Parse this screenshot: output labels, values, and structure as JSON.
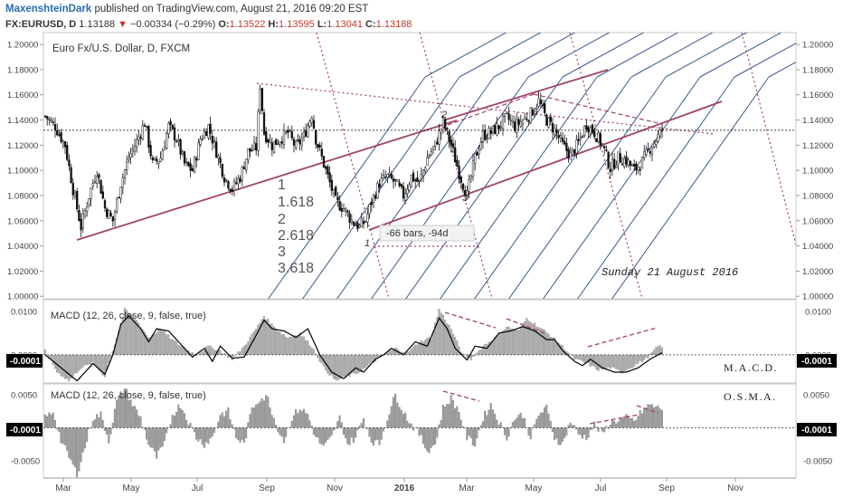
{
  "header": {
    "author": "MaxenshteinDark",
    "published": "published on TradingView.com, August 21, 2016 09:20 EST",
    "symbol": "FX:EURUSD, D",
    "last": "1.13188",
    "change_arrow": "▼",
    "change": "−0.00334 (−0.29%)",
    "o_label": "O:",
    "o_value": "1.13522",
    "h_label": "H:",
    "h_value": "1.13595",
    "l_label": "L:",
    "l_value": "1.13041",
    "c_label": "C:",
    "c_value": "1.13188"
  },
  "chart_data": [
    {
      "type": "candlestick",
      "title": "Euro Fx/U.S. Dollar, D, FXCM",
      "ylim": [
        0.998,
        1.208
      ],
      "y_ticks": [
        "1.20000",
        "1.18000",
        "1.16000",
        "1.14000",
        "1.12000",
        "1.10000",
        "1.08000",
        "1.06000",
        "1.04000",
        "1.02000",
        "1.00000"
      ],
      "x_ticks": [
        "Mar",
        "May",
        "Jul",
        "Sep",
        "Nov",
        "2016",
        "Mar",
        "May",
        "Jul",
        "Sep",
        "Nov"
      ],
      "price_reference": 1.13188,
      "close_path": [
        [
          0,
          1.143
        ],
        [
          5,
          1.135
        ],
        [
          10,
          1.12
        ],
        [
          14,
          1.085
        ],
        [
          18,
          1.055
        ],
        [
          22,
          1.08
        ],
        [
          26,
          1.1
        ],
        [
          30,
          1.07
        ],
        [
          34,
          1.06
        ],
        [
          38,
          1.09
        ],
        [
          42,
          1.11
        ],
        [
          46,
          1.123
        ],
        [
          50,
          1.138
        ],
        [
          54,
          1.105
        ],
        [
          58,
          1.11
        ],
        [
          62,
          1.135
        ],
        [
          66,
          1.125
        ],
        [
          70,
          1.105
        ],
        [
          74,
          1.1
        ],
        [
          78,
          1.125
        ],
        [
          82,
          1.135
        ],
        [
          86,
          1.115
        ],
        [
          90,
          1.095
        ],
        [
          94,
          1.085
        ],
        [
          98,
          1.095
        ],
        [
          102,
          1.115
        ],
        [
          106,
          1.118
        ],
        [
          108,
          1.168
        ],
        [
          110,
          1.13
        ],
        [
          114,
          1.12
        ],
        [
          118,
          1.125
        ],
        [
          122,
          1.13
        ],
        [
          126,
          1.118
        ],
        [
          130,
          1.127
        ],
        [
          134,
          1.145
        ],
        [
          136,
          1.125
        ],
        [
          138,
          1.115
        ],
        [
          142,
          1.095
        ],
        [
          146,
          1.075
        ],
        [
          150,
          1.07
        ],
        [
          154,
          1.06
        ],
        [
          158,
          1.055
        ],
        [
          161,
          1.06
        ],
        [
          164,
          1.075
        ],
        [
          168,
          1.09
        ],
        [
          172,
          1.095
        ],
        [
          176,
          1.09
        ],
        [
          180,
          1.08
        ],
        [
          184,
          1.095
        ],
        [
          188,
          1.09
        ],
        [
          192,
          1.11
        ],
        [
          196,
          1.12
        ],
        [
          200,
          1.138
        ],
        [
          204,
          1.12
        ],
        [
          208,
          1.098
        ],
        [
          212,
          1.08
        ],
        [
          216,
          1.11
        ],
        [
          220,
          1.128
        ],
        [
          224,
          1.13
        ],
        [
          228,
          1.135
        ],
        [
          232,
          1.142
        ],
        [
          236,
          1.135
        ],
        [
          240,
          1.14
        ],
        [
          244,
          1.145
        ],
        [
          248,
          1.155
        ],
        [
          252,
          1.14
        ],
        [
          256,
          1.132
        ],
        [
          260,
          1.12
        ],
        [
          264,
          1.112
        ],
        [
          268,
          1.122
        ],
        [
          272,
          1.137
        ],
        [
          276,
          1.13
        ],
        [
          280,
          1.12
        ],
        [
          284,
          1.102
        ],
        [
          288,
          1.11
        ],
        [
          292,
          1.108
        ],
        [
          296,
          1.1
        ],
        [
          300,
          1.107
        ],
        [
          304,
          1.118
        ],
        [
          308,
          1.127
        ],
        [
          310,
          1.132
        ]
      ],
      "annotations": {
        "fib_levels": [
          "1",
          "1.618",
          "2",
          "2.618",
          "3",
          "3.618"
        ],
        "pivot_labels": [
          "1",
          "2",
          "3"
        ],
        "measure_label": "-66 bars, -94d",
        "date_label": "Sunday 21 August 2016"
      }
    },
    {
      "type": "line",
      "title": "MACD (12, 26, close, 9, false, true)",
      "ylim": [
        -0.0065,
        0.0125
      ],
      "y_ticks": [
        "0.0100",
        "0.0000"
      ],
      "current_value": "-0.0001",
      "panel_label": "M.A.C.D.",
      "macd_line": [
        [
          0,
          0.0
        ],
        [
          8,
          -0.003
        ],
        [
          16,
          -0.006
        ],
        [
          24,
          -0.002
        ],
        [
          30,
          -0.0045
        ],
        [
          34,
          0.0
        ],
        [
          38,
          0.007
        ],
        [
          42,
          0.009
        ],
        [
          48,
          0.006
        ],
        [
          52,
          0.003
        ],
        [
          56,
          0.006
        ],
        [
          62,
          0.0055
        ],
        [
          68,
          0.0025
        ],
        [
          74,
          -0.0005
        ],
        [
          80,
          0.0015
        ],
        [
          84,
          -0.0015
        ],
        [
          88,
          0.002
        ],
        [
          94,
          -0.0008
        ],
        [
          100,
          -0.0005
        ],
        [
          106,
          0.0045
        ],
        [
          110,
          0.008
        ],
        [
          114,
          0.006
        ],
        [
          120,
          0.0055
        ],
        [
          126,
          0.004
        ],
        [
          132,
          0.006
        ],
        [
          138,
          0.0
        ],
        [
          144,
          -0.004
        ],
        [
          150,
          -0.0055
        ],
        [
          156,
          -0.003
        ],
        [
          160,
          -0.004
        ],
        [
          166,
          -0.001
        ],
        [
          170,
          0.0
        ],
        [
          174,
          0.0015
        ],
        [
          180,
          0.0
        ],
        [
          186,
          0.003
        ],
        [
          192,
          0.002
        ],
        [
          198,
          0.0085
        ],
        [
          202,
          0.006
        ],
        [
          206,
          0.0015
        ],
        [
          212,
          -0.0012
        ],
        [
          216,
          0.002
        ],
        [
          222,
          0.0015
        ],
        [
          228,
          0.005
        ],
        [
          234,
          0.0055
        ],
        [
          240,
          0.0065
        ],
        [
          246,
          0.0055
        ],
        [
          252,
          0.0035
        ],
        [
          256,
          0.0035
        ],
        [
          260,
          0.001
        ],
        [
          266,
          -0.0015
        ],
        [
          270,
          -0.0025
        ],
        [
          274,
          -0.001
        ],
        [
          280,
          -0.003
        ],
        [
          286,
          -0.004
        ],
        [
          292,
          -0.004
        ],
        [
          298,
          -0.003
        ],
        [
          304,
          -0.001
        ],
        [
          310,
          0.0005
        ]
      ],
      "histogram": [
        [
          0,
          0.001
        ],
        [
          6,
          -0.004
        ],
        [
          12,
          -0.006
        ],
        [
          18,
          -0.003
        ],
        [
          24,
          -0.002
        ],
        [
          30,
          -0.005
        ],
        [
          36,
          0.004
        ],
        [
          40,
          0.0105
        ],
        [
          46,
          0.008
        ],
        [
          52,
          0.004
        ],
        [
          58,
          0.006
        ],
        [
          64,
          0.0035
        ],
        [
          70,
          0.0015
        ],
        [
          76,
          0.0
        ],
        [
          82,
          0.002
        ],
        [
          88,
          0.001
        ],
        [
          94,
          -0.001
        ],
        [
          100,
          0.002
        ],
        [
          106,
          0.006
        ],
        [
          110,
          0.009
        ],
        [
          116,
          0.006
        ],
        [
          122,
          0.004
        ],
        [
          128,
          0.005
        ],
        [
          134,
          0.002
        ],
        [
          140,
          -0.003
        ],
        [
          146,
          -0.006
        ],
        [
          152,
          -0.005
        ],
        [
          158,
          -0.004
        ],
        [
          164,
          -0.002
        ],
        [
          170,
          0.0
        ],
        [
          176,
          0.0015
        ],
        [
          182,
          0.0005
        ],
        [
          188,
          0.003
        ],
        [
          194,
          0.004
        ],
        [
          198,
          0.0105
        ],
        [
          204,
          0.006
        ],
        [
          210,
          0.0
        ],
        [
          214,
          -0.001
        ],
        [
          220,
          0.002
        ],
        [
          226,
          0.004
        ],
        [
          232,
          0.0065
        ],
        [
          238,
          0.0055
        ],
        [
          242,
          0.0085
        ],
        [
          248,
          0.0065
        ],
        [
          254,
          0.0045
        ],
        [
          260,
          0.002
        ],
        [
          266,
          -0.001
        ],
        [
          272,
          -0.002
        ],
        [
          278,
          -0.0035
        ],
        [
          284,
          -0.003
        ],
        [
          290,
          -0.004
        ],
        [
          296,
          -0.0025
        ],
        [
          302,
          -0.001
        ],
        [
          308,
          0.002
        ]
      ]
    },
    {
      "type": "bar",
      "title": "MACD (12, 26, close, 9, false, true)",
      "ylim": [
        -0.0075,
        0.0065
      ],
      "y_ticks": [
        "0.0050",
        "0.0000",
        "-0.0050"
      ],
      "current_value": "-0.0001",
      "panel_label": "O.S.M.A.",
      "histogram": [
        [
          0,
          0.0015
        ],
        [
          4,
          0.0025
        ],
        [
          8,
          -0.002
        ],
        [
          12,
          -0.0045
        ],
        [
          16,
          -0.007
        ],
        [
          20,
          -0.003
        ],
        [
          24,
          0.0015
        ],
        [
          28,
          0.002
        ],
        [
          32,
          -0.002
        ],
        [
          36,
          0.004
        ],
        [
          40,
          0.006
        ],
        [
          44,
          0.0035
        ],
        [
          48,
          0.0015
        ],
        [
          52,
          -0.0025
        ],
        [
          56,
          -0.0045
        ],
        [
          60,
          -0.0025
        ],
        [
          64,
          0.002
        ],
        [
          68,
          0.0035
        ],
        [
          72,
          0.001
        ],
        [
          76,
          -0.0015
        ],
        [
          80,
          -0.0025
        ],
        [
          84,
          -0.0015
        ],
        [
          88,
          0.002
        ],
        [
          92,
          0.0025
        ],
        [
          96,
          -0.0015
        ],
        [
          100,
          -0.0025
        ],
        [
          104,
          0.003
        ],
        [
          108,
          0.0045
        ],
        [
          112,
          0.0045
        ],
        [
          116,
          0.0005
        ],
        [
          120,
          -0.002
        ],
        [
          124,
          0.0015
        ],
        [
          128,
          0.003
        ],
        [
          132,
          0.002
        ],
        [
          136,
          -0.0015
        ],
        [
          140,
          -0.003
        ],
        [
          144,
          -0.0015
        ],
        [
          148,
          0.0015
        ],
        [
          152,
          -0.0025
        ],
        [
          156,
          -0.0015
        ],
        [
          160,
          0.0015
        ],
        [
          164,
          -0.002
        ],
        [
          168,
          -0.0025
        ],
        [
          172,
          0.0015
        ],
        [
          176,
          0.005
        ],
        [
          180,
          0.0025
        ],
        [
          184,
          0.0005
        ],
        [
          188,
          -0.001
        ],
        [
          192,
          -0.0035
        ],
        [
          196,
          -0.0025
        ],
        [
          200,
          0.003
        ],
        [
          204,
          0.0045
        ],
        [
          208,
          0.0025
        ],
        [
          212,
          -0.0015
        ],
        [
          216,
          -0.0025
        ],
        [
          220,
          0.0015
        ],
        [
          224,
          0.0035
        ],
        [
          228,
          0.001
        ],
        [
          232,
          -0.0015
        ],
        [
          236,
          0.0015
        ],
        [
          240,
          0.002
        ],
        [
          244,
          -0.0015
        ],
        [
          248,
          0.002
        ],
        [
          252,
          0.003
        ],
        [
          256,
          -0.0015
        ],
        [
          260,
          -0.0025
        ],
        [
          264,
          0.001
        ],
        [
          268,
          -0.001
        ],
        [
          272,
          -0.0015
        ],
        [
          276,
          0.0005
        ],
        [
          280,
          -0.001
        ],
        [
          284,
          0.0008
        ],
        [
          288,
          0.0012
        ],
        [
          292,
          0.0015
        ],
        [
          296,
          0.001
        ],
        [
          300,
          0.0025
        ],
        [
          304,
          0.0035
        ],
        [
          308,
          0.003
        ]
      ]
    }
  ],
  "colors": {
    "axis_badge_bg": "#000000",
    "trend_line": "#a0436a",
    "fib_channel": "#3a5a8c",
    "time_zone": "#a0436a",
    "macd_histogram": "#aaaaaa",
    "osma_histogram": "#999999"
  }
}
